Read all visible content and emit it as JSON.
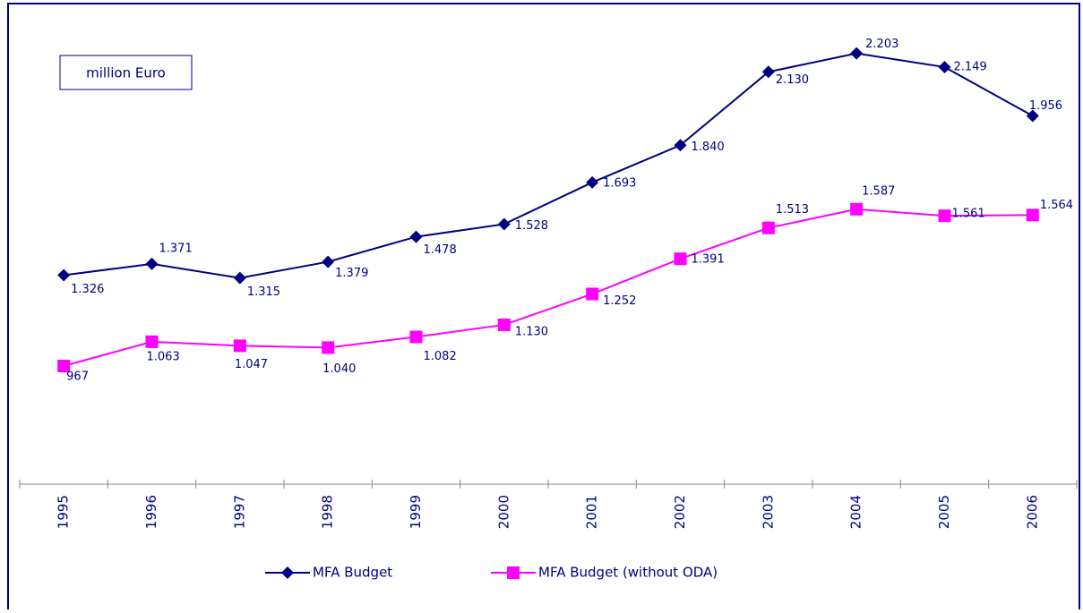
{
  "chart_data": {
    "type": "line",
    "unit_label": "million Euro",
    "categories": [
      "1995",
      "1996",
      "1997",
      "1998",
      "1999",
      "2000",
      "2001",
      "2002",
      "2003",
      "2004",
      "2005",
      "2006"
    ],
    "series": [
      {
        "name": "MFA Budget",
        "color": "#000080",
        "marker": "diamond",
        "values": [
          1326,
          1371,
          1315,
          1379,
          1478,
          1528,
          1693,
          1840,
          2130,
          2203,
          2149,
          1956
        ],
        "value_labels": [
          "1.326",
          "1.371",
          "1.315",
          "1.379",
          "1.478",
          "1.528",
          "1.693",
          "1.840",
          "2.130",
          "2.203",
          "2.149",
          "1.956"
        ]
      },
      {
        "name": "MFA Budget (without ODA)",
        "color": "#ff00ff",
        "marker": "square",
        "values": [
          967,
          1063,
          1047,
          1040,
          1082,
          1130,
          1252,
          1391,
          1513,
          1587,
          1561,
          1564
        ],
        "value_labels": [
          "967",
          "1.063",
          "1.047",
          "1.040",
          "1.082",
          "1.130",
          "1.252",
          "1.391",
          "1.513",
          "1.587",
          "1.561",
          "1.564"
        ]
      }
    ],
    "ylim": [
      500,
      2400
    ],
    "legend": "bottom"
  }
}
